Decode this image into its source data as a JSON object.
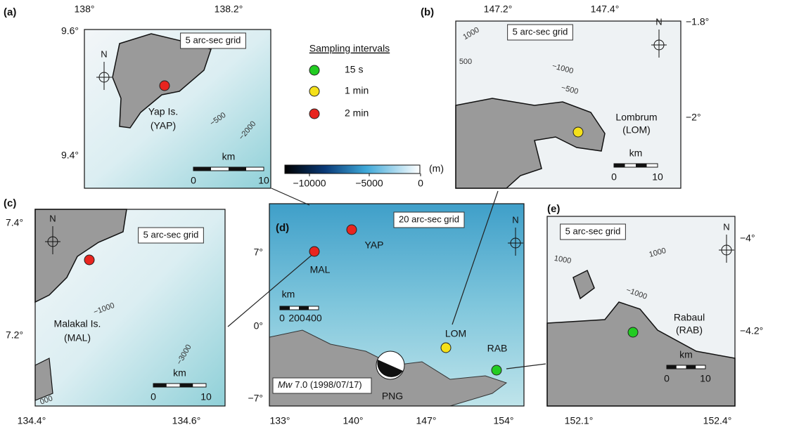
{
  "legend": {
    "title": "Sampling intervals",
    "items": [
      "15 s",
      "1 min",
      "2 min"
    ],
    "colors": [
      "#22cc22",
      "#f5e11a",
      "#e8251f"
    ]
  },
  "colorbar": {
    "ticks": [
      "−10000",
      "−5000",
      "0"
    ],
    "unit": "(m)"
  },
  "panels": [
    {
      "label": "(a)",
      "xticks": [
        "138°",
        "138.2°"
      ],
      "yticks": [
        "9.6°",
        "9.4°"
      ],
      "grid": "5 arc-sec grid",
      "north": "N",
      "site": [
        "Yap Is.",
        "(YAP)"
      ],
      "contours": [
        "−500",
        "−2000"
      ],
      "scale": {
        "unit": "km",
        "ticks": [
          "0",
          "10"
        ]
      }
    },
    {
      "label": "(b)",
      "xticks": [
        "147.2°",
        "147.4°"
      ],
      "yticks": [
        "−1.8°",
        "−2°"
      ],
      "grid": "5 arc-sec grid",
      "north": "N",
      "site": [
        "Lombrum",
        "(LOM)"
      ],
      "contours": [
        "1000",
        "500",
        "−1000",
        "−500"
      ],
      "scale": {
        "unit": "km",
        "ticks": [
          "0",
          "10"
        ]
      }
    },
    {
      "label": "(c)",
      "xticks": [
        "134.4°",
        "134.6°"
      ],
      "yticks": [
        "7.4°",
        "7.2°"
      ],
      "grid": "5 arc-sec grid",
      "north": "N",
      "site": [
        "Malakal Is.",
        "(MAL)"
      ],
      "contours": [
        "−1000",
        "−3000",
        "000"
      ],
      "scale": {
        "unit": "km",
        "ticks": [
          "0",
          "10"
        ]
      }
    },
    {
      "label": "(d)",
      "xticks": [
        "133°",
        "140°",
        "147°",
        "154°"
      ],
      "yticks": [
        "7°",
        "0°",
        "−7°"
      ],
      "grid": "20 arc-sec grid",
      "north": "N",
      "stations": [
        "YAP",
        "MAL",
        "LOM",
        "RAB"
      ],
      "region": "PNG",
      "event": [
        "Mw",
        "7.0 (1998/07/17)"
      ],
      "scale": {
        "unit": "km",
        "ticks": [
          "0",
          "200",
          "400"
        ]
      }
    },
    {
      "label": "(e)",
      "xticks": [
        "152.1°",
        "152.4°"
      ],
      "yticks": [
        "−4°",
        "−4.2°"
      ],
      "grid": "5 arc-sec grid",
      "north": "N",
      "site": [
        "Rabaul",
        "(RAB)"
      ],
      "contours": [
        "1000",
        "1000",
        "−1000"
      ],
      "scale": {
        "unit": "km",
        "ticks": [
          "0",
          "10"
        ]
      }
    }
  ]
}
